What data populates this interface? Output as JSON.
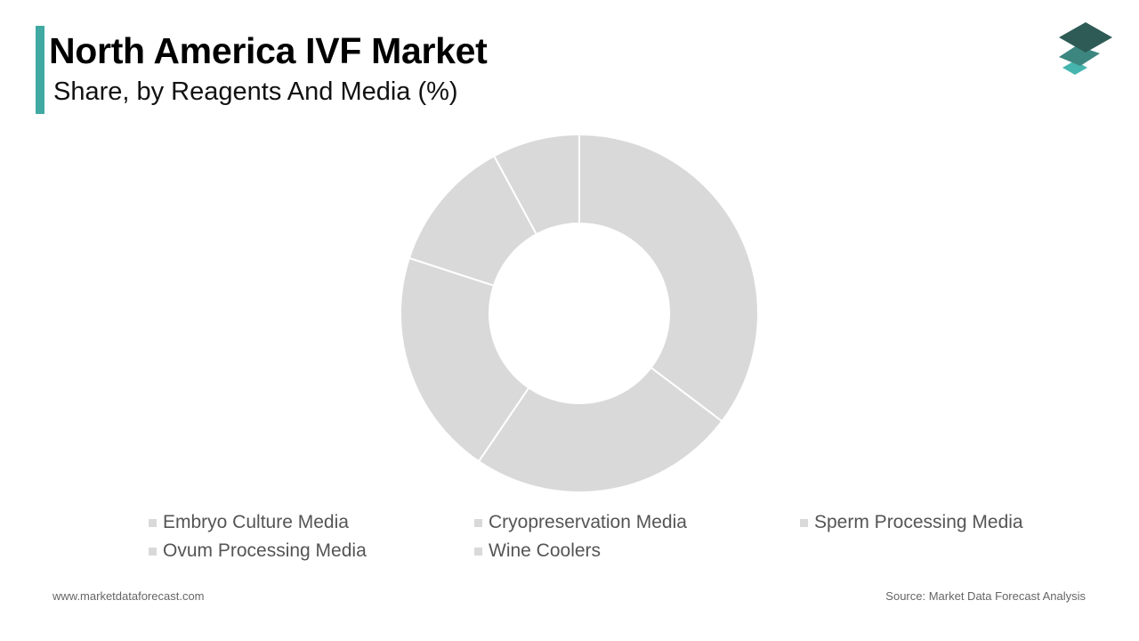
{
  "header": {
    "title": "North America IVF Market",
    "subtitle": "Share, by Reagents And Media (%)",
    "accent_color": "#3fa9a2"
  },
  "logo": {
    "icon": "stacked-layers-logo",
    "colors": [
      "#2e5b56",
      "#3d8680",
      "#45b5ad"
    ]
  },
  "chart_data": {
    "type": "pie",
    "donut": true,
    "title": "North America IVF Market",
    "subtitle": "Share, by Reagents And Media (%)",
    "categories": [
      "Embryo Culture Media",
      "Cryopreservation Media",
      "Sperm Processing Media",
      "Ovum Processing Media",
      "Wine Coolers"
    ],
    "values": [
      35.3,
      24.2,
      20.5,
      12.1,
      7.9
    ],
    "slice_color": "#d9d9d9",
    "separator_color": "#ffffff",
    "legend_position": "bottom"
  },
  "footer": {
    "website": "www.marketdataforecast.com",
    "source": "Source: Market Data Forecast Analysis"
  }
}
